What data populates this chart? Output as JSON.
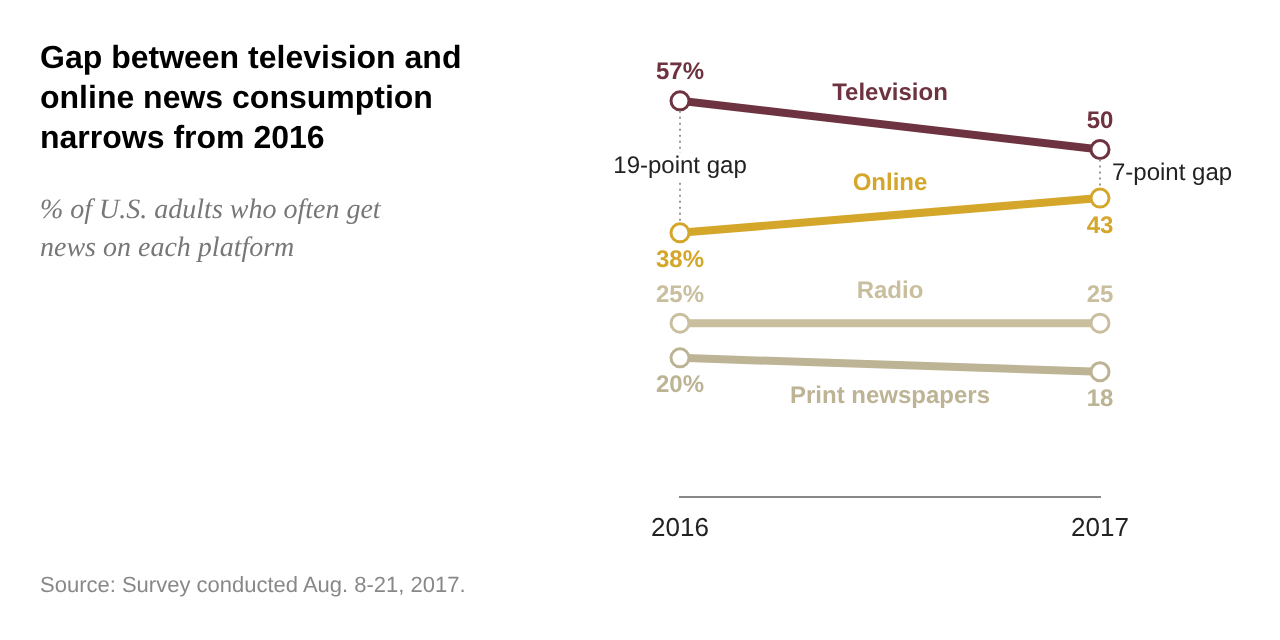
{
  "chart_data": {
    "type": "line",
    "title": "Gap between television and online news consumption narrows from 2016",
    "subtitle": "% of U.S. adults who often get news on each platform",
    "categories": [
      "2016",
      "2017"
    ],
    "series": [
      {
        "name": "Television",
        "color": "#6e3340",
        "values": [
          57,
          50
        ],
        "value_labels": [
          "57%",
          "50"
        ]
      },
      {
        "name": "Online",
        "color": "#d4a62a",
        "values": [
          38,
          43
        ],
        "value_labels": [
          "38%",
          "43"
        ]
      },
      {
        "name": "Radio",
        "color": "#c9bf9f",
        "values": [
          25,
          25
        ],
        "value_labels": [
          "25%",
          "25"
        ]
      },
      {
        "name": "Print newspapers",
        "color": "#bdb395",
        "values": [
          20,
          18
        ],
        "value_labels": [
          "20%",
          "18"
        ]
      }
    ],
    "annotations": [
      "19-point gap",
      "7-point gap",
      "Source: Survey conducted Aug. 8-21, 2017."
    ],
    "marker": "circle",
    "grid": false,
    "legend": false
  }
}
